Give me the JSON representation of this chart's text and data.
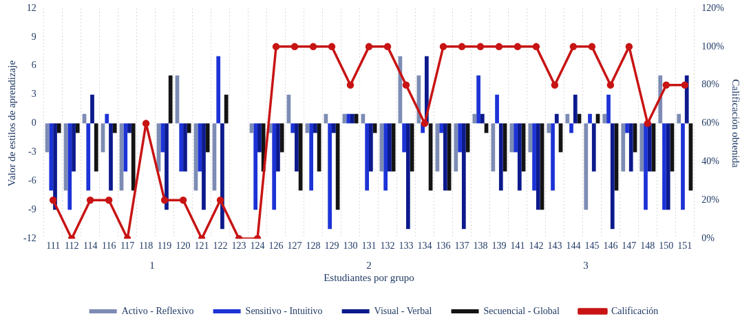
{
  "chart_data": {
    "type": "bar",
    "xlabel": "Estudiantes por grupo",
    "ylabel": "Valor de estilos de aprendizaje",
    "y2label": "Calificación obtenida",
    "categories": [
      "111",
      "112",
      "114",
      "116",
      "117",
      "118",
      "119",
      "120",
      "121",
      "122",
      "123",
      "124",
      "126",
      "127",
      "128",
      "129",
      "130",
      "131",
      "132",
      "133",
      "134",
      "136",
      "137",
      "138",
      "139",
      "141",
      "142",
      "143",
      "144",
      "145",
      "146",
      "147",
      "148",
      "150",
      "151"
    ],
    "series": [
      {
        "name": "Activo - Reflexivo",
        "color": "#7d8cb4",
        "values": [
          -3,
          -7,
          1,
          -3,
          -7,
          0,
          -5,
          5,
          -7,
          -7,
          0,
          -1,
          -1,
          3,
          -1,
          1,
          1,
          1,
          -5,
          7,
          5,
          -5,
          -5,
          1,
          -5,
          -3,
          -3,
          -1,
          1,
          -9,
          1,
          -5,
          -5,
          5,
          1
        ]
      },
      {
        "name": "Sensitivo - Intuitivo",
        "color": "#1c33d6",
        "values": [
          -7,
          -9,
          -7,
          1,
          -5,
          0,
          -3,
          -5,
          -5,
          7,
          0,
          -9,
          -9,
          -1,
          -7,
          -11,
          1,
          -7,
          -7,
          -3,
          -1,
          -1,
          -3,
          5,
          3,
          -3,
          -7,
          -7,
          -1,
          1,
          3,
          -1,
          -9,
          -9,
          -9
        ]
      },
      {
        "name": "Visual - Verbal",
        "color": "#0c1a8c",
        "values": [
          -9,
          -5,
          3,
          -7,
          -1,
          0,
          -9,
          -5,
          -9,
          -11,
          0,
          -3,
          -5,
          -5,
          -1,
          -1,
          1,
          -5,
          -5,
          -11,
          7,
          -7,
          -11,
          1,
          -7,
          -7,
          -9,
          1,
          3,
          -5,
          -11,
          -5,
          -5,
          -9,
          5
        ]
      },
      {
        "name": "Secuencial - Global",
        "color": "#141414",
        "values": [
          -1,
          -1,
          -5,
          -1,
          -7,
          0,
          5,
          -1,
          -3,
          3,
          0,
          -5,
          -3,
          -7,
          -5,
          -9,
          1,
          -1,
          -5,
          -5,
          -7,
          -7,
          -3,
          -1,
          -5,
          -5,
          -9,
          -3,
          1,
          1,
          -7,
          -3,
          -5,
          -5,
          -7
        ]
      },
      {
        "name": "Calificación",
        "type": "line",
        "axis": "y2",
        "color": "#c81414",
        "values": [
          20,
          0,
          20,
          20,
          0,
          60,
          20,
          20,
          0,
          20,
          0,
          0,
          100,
          100,
          100,
          100,
          80,
          100,
          100,
          80,
          60,
          100,
          100,
          100,
          100,
          100,
          100,
          80,
          100,
          100,
          80,
          100,
          60,
          80,
          80
        ]
      }
    ],
    "ylim": [
      -12,
      12
    ],
    "yticks": [
      -12,
      -9,
      -6,
      -3,
      0,
      3,
      6,
      9,
      12
    ],
    "y2lim": [
      0,
      120
    ],
    "y2ticks": [
      {
        "value": 0,
        "label": "0%"
      },
      {
        "value": 20,
        "label": "20%"
      },
      {
        "value": 40,
        "label": "40%"
      },
      {
        "value": 60,
        "label": "60%"
      },
      {
        "value": 80,
        "label": "80%"
      },
      {
        "value": 100,
        "label": "100%"
      },
      {
        "value": 120,
        "label": "120%"
      }
    ],
    "grid": "x",
    "legend": "bottom",
    "marker": "circle",
    "annotations": [
      "1",
      "2",
      "3"
    ]
  }
}
